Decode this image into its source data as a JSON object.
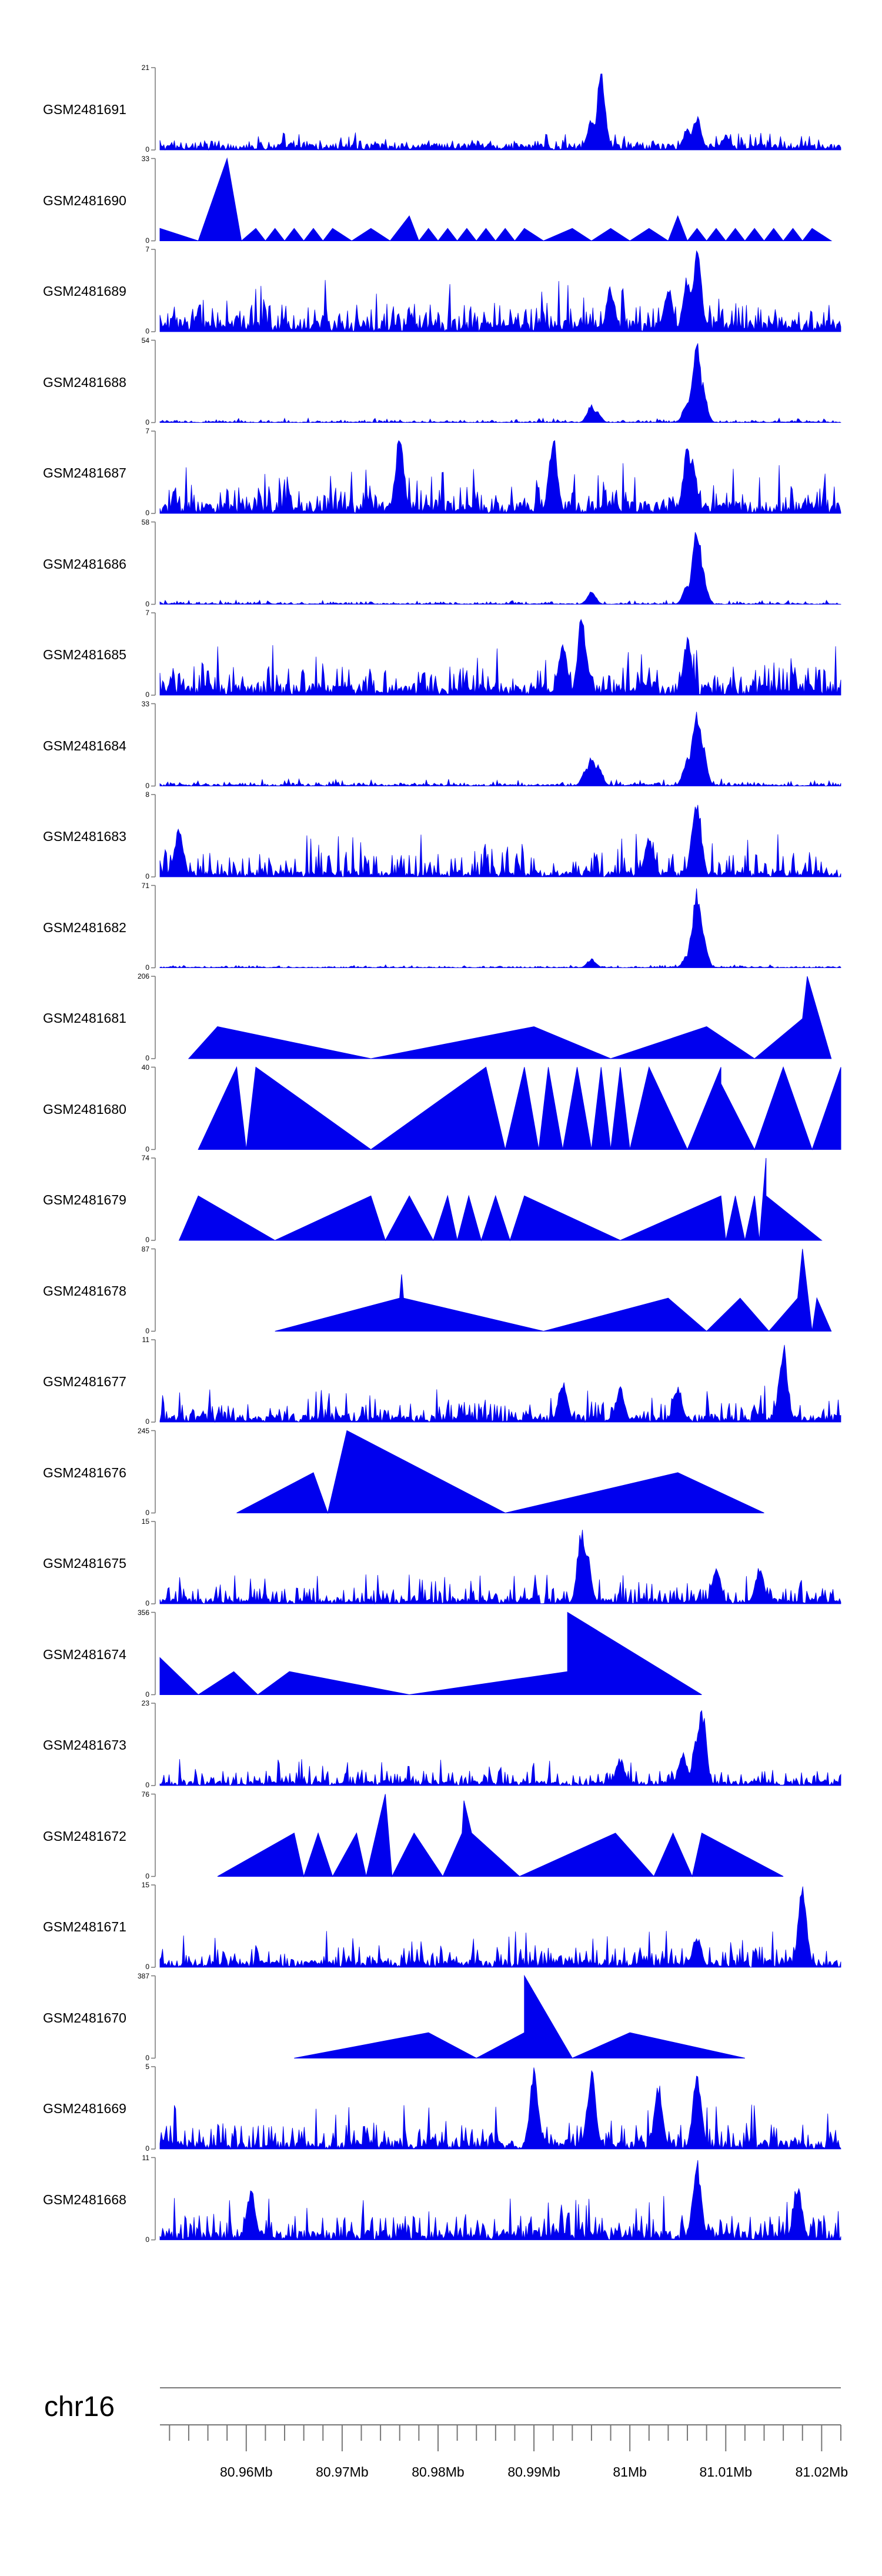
{
  "chart_data": {
    "type": "area",
    "title": "",
    "fill_color": "#0000ee",
    "axis_color": "#777777",
    "chromosome": "chr16",
    "x_range_mb": [
      80.951,
      81.022
    ],
    "x_ticks": [
      {
        "label": "80.96Mb",
        "value": 80.96
      },
      {
        "label": "80.97Mb",
        "value": 80.97
      },
      {
        "label": "80.98Mb",
        "value": 80.98
      },
      {
        "label": "80.99Mb",
        "value": 80.99
      },
      {
        "label": "81Mb",
        "value": 81.0
      },
      {
        "label": "81.01Mb",
        "value": 81.01
      },
      {
        "label": "81.02Mb",
        "value": 81.02
      }
    ],
    "tracks": [
      {
        "name": "GSM2481691",
        "ymax": 21,
        "kind": "dense",
        "baseline": 0.08,
        "noise": 0.12,
        "peaks": [
          [
            80.997,
            20
          ],
          [
            80.996,
            8
          ],
          [
            81.007,
            9
          ],
          [
            81.006,
            6
          ],
          [
            81.01,
            4
          ]
        ]
      },
      {
        "name": "GSM2481690",
        "ymax": 33,
        "kind": "tri",
        "points": [
          [
            80.951,
            5
          ],
          [
            80.955,
            0
          ],
          [
            80.958,
            33
          ],
          [
            80.9595,
            0
          ],
          [
            80.961,
            5
          ],
          [
            80.962,
            0
          ],
          [
            80.963,
            5
          ],
          [
            80.964,
            0
          ],
          [
            80.965,
            5
          ],
          [
            80.966,
            0
          ],
          [
            80.967,
            5
          ],
          [
            80.968,
            0
          ],
          [
            80.969,
            5
          ],
          [
            80.971,
            0
          ],
          [
            80.973,
            5
          ],
          [
            80.975,
            0
          ],
          [
            80.977,
            10
          ],
          [
            80.978,
            0
          ],
          [
            80.979,
            5
          ],
          [
            80.98,
            0
          ],
          [
            80.981,
            5
          ],
          [
            80.982,
            0
          ],
          [
            80.983,
            5
          ],
          [
            80.984,
            0
          ],
          [
            80.985,
            5
          ],
          [
            80.986,
            0
          ],
          [
            80.987,
            5
          ],
          [
            80.988,
            0
          ],
          [
            80.989,
            5
          ],
          [
            80.991,
            0
          ],
          [
            80.994,
            5
          ],
          [
            80.996,
            0
          ],
          [
            80.998,
            5
          ],
          [
            81.0,
            0
          ],
          [
            81.002,
            5
          ],
          [
            81.004,
            0
          ],
          [
            81.005,
            10
          ],
          [
            81.006,
            0
          ],
          [
            81.007,
            5
          ],
          [
            81.008,
            0
          ],
          [
            81.009,
            5
          ],
          [
            81.01,
            0
          ],
          [
            81.011,
            5
          ],
          [
            81.012,
            0
          ],
          [
            81.013,
            5
          ],
          [
            81.014,
            0
          ],
          [
            81.015,
            5
          ],
          [
            81.016,
            0
          ],
          [
            81.017,
            5
          ],
          [
            81.018,
            0
          ],
          [
            81.019,
            5
          ],
          [
            81.021,
            0
          ]
        ]
      },
      {
        "name": "GSM2481689",
        "ymax": 7,
        "kind": "dense",
        "baseline": 0.15,
        "noise": 0.35,
        "peaks": [
          [
            81.007,
            7
          ],
          [
            81.006,
            5
          ],
          [
            80.998,
            4
          ],
          [
            81.004,
            4
          ]
        ]
      },
      {
        "name": "GSM2481688",
        "ymax": 54,
        "kind": "dense",
        "baseline": 0.01,
        "noise": 0.03,
        "peaks": [
          [
            81.007,
            54
          ],
          [
            81.0068,
            40
          ],
          [
            81.0075,
            30
          ],
          [
            80.996,
            12
          ],
          [
            80.9965,
            8
          ],
          [
            81.006,
            15
          ]
        ]
      },
      {
        "name": "GSM2481687",
        "ymax": 7,
        "kind": "dense",
        "baseline": 0.15,
        "noise": 0.35,
        "peaks": [
          [
            80.976,
            7
          ],
          [
            80.992,
            7
          ],
          [
            81.006,
            6
          ],
          [
            81.0065,
            5
          ]
        ]
      },
      {
        "name": "GSM2481686",
        "ymax": 58,
        "kind": "dense",
        "baseline": 0.01,
        "noise": 0.03,
        "peaks": [
          [
            81.007,
            58
          ],
          [
            81.0068,
            42
          ],
          [
            81.0075,
            28
          ],
          [
            80.996,
            10
          ],
          [
            81.006,
            14
          ]
        ]
      },
      {
        "name": "GSM2481685",
        "ymax": 7,
        "kind": "dense",
        "baseline": 0.15,
        "noise": 0.35,
        "peaks": [
          [
            80.995,
            7
          ],
          [
            80.993,
            5
          ],
          [
            81.006,
            5
          ]
        ]
      },
      {
        "name": "GSM2481684",
        "ymax": 33,
        "kind": "dense",
        "baseline": 0.02,
        "noise": 0.05,
        "peaks": [
          [
            81.007,
            33
          ],
          [
            81.0068,
            25
          ],
          [
            81.0075,
            20
          ],
          [
            80.996,
            13
          ],
          [
            80.9967,
            9
          ],
          [
            80.9955,
            8
          ],
          [
            81.006,
            12
          ]
        ]
      },
      {
        "name": "GSM2481683",
        "ymax": 8,
        "kind": "dense",
        "baseline": 0.08,
        "noise": 0.3,
        "peaks": [
          [
            81.007,
            8
          ],
          [
            81.0068,
            6
          ],
          [
            80.953,
            5
          ],
          [
            81.002,
            4
          ]
        ]
      },
      {
        "name": "GSM2481682",
        "ymax": 71,
        "kind": "dense",
        "baseline": 0.01,
        "noise": 0.02,
        "peaks": [
          [
            81.007,
            71
          ],
          [
            81.0068,
            55
          ],
          [
            81.0075,
            40
          ],
          [
            80.996,
            8
          ],
          [
            81.006,
            12
          ]
        ]
      },
      {
        "name": "GSM2481681",
        "ymax": 206,
        "kind": "tri",
        "points": [
          [
            80.954,
            0
          ],
          [
            80.957,
            80
          ],
          [
            80.973,
            0
          ],
          [
            80.99,
            80
          ],
          [
            80.998,
            0
          ],
          [
            81.008,
            80
          ],
          [
            81.013,
            0
          ],
          [
            81.018,
            100
          ],
          [
            81.0185,
            206
          ],
          [
            81.021,
            0
          ]
        ]
      },
      {
        "name": "GSM2481680",
        "ymax": 40,
        "kind": "tri",
        "points": [
          [
            80.955,
            0
          ],
          [
            80.959,
            40
          ],
          [
            80.96,
            0
          ],
          [
            80.961,
            40
          ],
          [
            80.973,
            0
          ],
          [
            80.985,
            40
          ],
          [
            80.987,
            0
          ],
          [
            80.989,
            40
          ],
          [
            80.9905,
            0
          ],
          [
            80.9915,
            40
          ],
          [
            80.993,
            0
          ],
          [
            80.9945,
            40
          ],
          [
            80.996,
            0
          ],
          [
            80.997,
            40
          ],
          [
            80.998,
            0
          ],
          [
            80.999,
            40
          ],
          [
            81.0,
            0
          ],
          [
            81.002,
            40
          ],
          [
            81.006,
            0
          ],
          [
            81.0095,
            40
          ],
          [
            81.0095,
            32
          ],
          [
            81.013,
            0
          ],
          [
            81.016,
            40
          ],
          [
            81.019,
            0
          ],
          [
            81.022,
            40
          ],
          [
            81.022,
            0
          ]
        ]
      },
      {
        "name": "GSM2481679",
        "ymax": 74,
        "kind": "tri",
        "points": [
          [
            80.953,
            0
          ],
          [
            80.955,
            40
          ],
          [
            80.963,
            0
          ],
          [
            80.973,
            40
          ],
          [
            80.9745,
            0
          ],
          [
            80.977,
            40
          ],
          [
            80.9795,
            0
          ],
          [
            80.981,
            40
          ],
          [
            80.982,
            0
          ],
          [
            80.9832,
            40
          ],
          [
            80.9845,
            0
          ],
          [
            80.986,
            40
          ],
          [
            80.9875,
            0
          ],
          [
            80.989,
            40
          ],
          [
            80.999,
            0
          ],
          [
            81.0095,
            40
          ],
          [
            81.01,
            0
          ],
          [
            81.011,
            40
          ],
          [
            81.012,
            0
          ],
          [
            81.013,
            40
          ],
          [
            81.0135,
            0
          ],
          [
            81.0142,
            74
          ],
          [
            81.0142,
            40
          ],
          [
            81.02,
            0
          ]
        ]
      },
      {
        "name": "GSM2481678",
        "ymax": 87,
        "kind": "tri",
        "points": [
          [
            80.963,
            0
          ],
          [
            80.976,
            35
          ],
          [
            80.9762,
            60
          ],
          [
            80.9764,
            35
          ],
          [
            80.991,
            0
          ],
          [
            81.004,
            35
          ],
          [
            81.008,
            0
          ],
          [
            81.0115,
            35
          ],
          [
            81.0145,
            0
          ],
          [
            81.0175,
            35
          ],
          [
            81.018,
            87
          ],
          [
            81.019,
            0
          ],
          [
            81.0195,
            35
          ],
          [
            81.021,
            0
          ]
        ]
      },
      {
        "name": "GSM2481677",
        "ymax": 11,
        "kind": "dense",
        "baseline": 0.1,
        "noise": 0.25,
        "peaks": [
          [
            81.016,
            11
          ],
          [
            80.993,
            6
          ],
          [
            80.999,
            5
          ],
          [
            81.005,
            5
          ]
        ]
      },
      {
        "name": "GSM2481676",
        "ymax": 245,
        "kind": "tri",
        "points": [
          [
            80.959,
            0
          ],
          [
            80.967,
            120
          ],
          [
            80.9685,
            0
          ],
          [
            80.9705,
            245
          ],
          [
            80.987,
            0
          ],
          [
            81.005,
            120
          ],
          [
            81.014,
            0
          ]
        ]
      },
      {
        "name": "GSM2481675",
        "ymax": 15,
        "kind": "dense",
        "baseline": 0.07,
        "noise": 0.2,
        "peaks": [
          [
            80.995,
            15
          ],
          [
            80.9955,
            10
          ],
          [
            81.009,
            7
          ],
          [
            81.0135,
            7
          ]
        ]
      },
      {
        "name": "GSM2481674",
        "ymax": 356,
        "kind": "tri",
        "points": [
          [
            80.951,
            160
          ],
          [
            80.955,
            0
          ],
          [
            80.9587,
            100
          ],
          [
            80.9612,
            0
          ],
          [
            80.9645,
            100
          ],
          [
            80.977,
            0
          ],
          [
            80.9935,
            100
          ],
          [
            80.9935,
            356
          ],
          [
            81.0075,
            0
          ]
        ]
      },
      {
        "name": "GSM2481673",
        "ymax": 23,
        "kind": "dense",
        "baseline": 0.06,
        "noise": 0.18,
        "peaks": [
          [
            81.0075,
            23
          ],
          [
            81.007,
            15
          ],
          [
            81.0055,
            10
          ],
          [
            80.999,
            8
          ]
        ]
      },
      {
        "name": "GSM2481672",
        "ymax": 76,
        "kind": "tri",
        "points": [
          [
            80.957,
            0
          ],
          [
            80.965,
            40
          ],
          [
            80.966,
            0
          ],
          [
            80.9675,
            40
          ],
          [
            80.969,
            0
          ],
          [
            80.9715,
            40
          ],
          [
            80.9725,
            0
          ],
          [
            80.9745,
            76
          ],
          [
            80.9752,
            0
          ],
          [
            80.9775,
            40
          ],
          [
            80.9805,
            0
          ],
          [
            80.9825,
            40
          ],
          [
            80.9827,
            70
          ],
          [
            80.9835,
            40
          ],
          [
            80.9885,
            0
          ],
          [
            80.9985,
            40
          ],
          [
            81.0025,
            0
          ],
          [
            81.0045,
            40
          ],
          [
            81.0065,
            0
          ],
          [
            81.0075,
            40
          ],
          [
            81.016,
            0
          ]
        ]
      },
      {
        "name": "GSM2481671",
        "ymax": 15,
        "kind": "dense",
        "baseline": 0.1,
        "noise": 0.25,
        "peaks": [
          [
            81.018,
            15
          ],
          [
            81.007,
            6
          ]
        ]
      },
      {
        "name": "GSM2481670",
        "ymax": 387,
        "kind": "tri",
        "points": [
          [
            80.965,
            0
          ],
          [
            80.979,
            120
          ],
          [
            80.984,
            0
          ],
          [
            80.989,
            120
          ],
          [
            80.989,
            387
          ],
          [
            80.994,
            0
          ],
          [
            81.0,
            120
          ],
          [
            81.012,
            0
          ]
        ]
      },
      {
        "name": "GSM2481669",
        "ymax": 5,
        "kind": "dense",
        "baseline": 0.12,
        "noise": 0.3,
        "peaks": [
          [
            80.996,
            5
          ],
          [
            81.007,
            5
          ],
          [
            80.99,
            5
          ],
          [
            81.003,
            4
          ]
        ]
      },
      {
        "name": "GSM2481668",
        "ymax": 11,
        "kind": "dense",
        "baseline": 0.12,
        "noise": 0.3,
        "peaks": [
          [
            81.007,
            11
          ],
          [
            81.0175,
            8
          ],
          [
            80.9605,
            7
          ]
        ]
      }
    ]
  }
}
